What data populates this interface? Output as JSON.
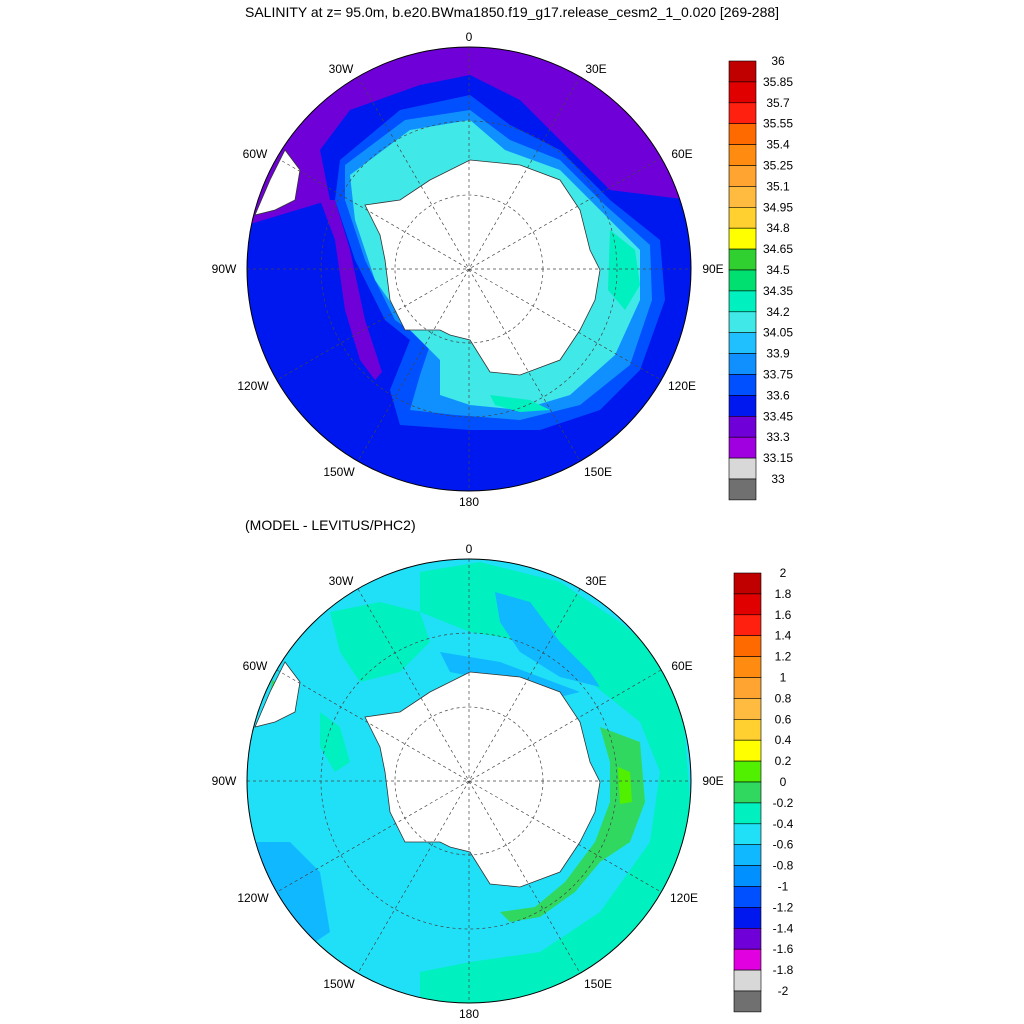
{
  "title": "SALINITY at z=  95.0m, b.e20.BWma1850.f19_g17.release_cesm2_1_0.020 [269-288]",
  "subtitle": "(MODEL - LEVITUS/PHC2)",
  "longitude_labels": {
    "north": "0",
    "nne": "30E",
    "ene": "60E",
    "east": "90E",
    "ese": "120E",
    "sse": "150E",
    "south": "180",
    "ssw": "150W",
    "wsw": "120W",
    "west": "90W",
    "wnw": "60W",
    "nnw": "30W"
  },
  "top_colorbar": {
    "labels": [
      "36",
      "35.85",
      "35.7",
      "35.55",
      "35.4",
      "35.25",
      "35.1",
      "34.95",
      "34.8",
      "34.65",
      "34.5",
      "34.35",
      "34.2",
      "34.05",
      "33.9",
      "33.75",
      "33.6",
      "33.45",
      "33.3",
      "33.15",
      "33"
    ],
    "colors": [
      "#c00000",
      "#e00000",
      "#ff2010",
      "#ff6a00",
      "#ff8c10",
      "#ffa430",
      "#ffbb40",
      "#ffd030",
      "#ffff00",
      "#30d030",
      "#00e070",
      "#00f0c0",
      "#40e8e8",
      "#20c0ff",
      "#1090ff",
      "#0050ff",
      "#0018f0",
      "#7000d8",
      "#a000e0",
      "#d8d8d8",
      "#707070"
    ]
  },
  "bottom_colorbar": {
    "labels": [
      "2",
      "1.8",
      "1.6",
      "1.4",
      "1.2",
      "1",
      "0.8",
      "0.6",
      "0.4",
      "0.2",
      "0",
      "-0.2",
      "-0.4",
      "-0.6",
      "-0.8",
      "-1",
      "-1.2",
      "-1.4",
      "-1.6",
      "-1.8",
      "-2"
    ],
    "colors": [
      "#c00000",
      "#e00000",
      "#ff2010",
      "#ff6a00",
      "#ff8c10",
      "#ffa430",
      "#ffbb40",
      "#ffd030",
      "#ffff00",
      "#50f000",
      "#30d860",
      "#00f0c0",
      "#20e0f8",
      "#10b8ff",
      "#0090ff",
      "#0050ff",
      "#0018f0",
      "#7000d8",
      "#e000e0",
      "#d8d8d8",
      "#707070"
    ]
  }
}
